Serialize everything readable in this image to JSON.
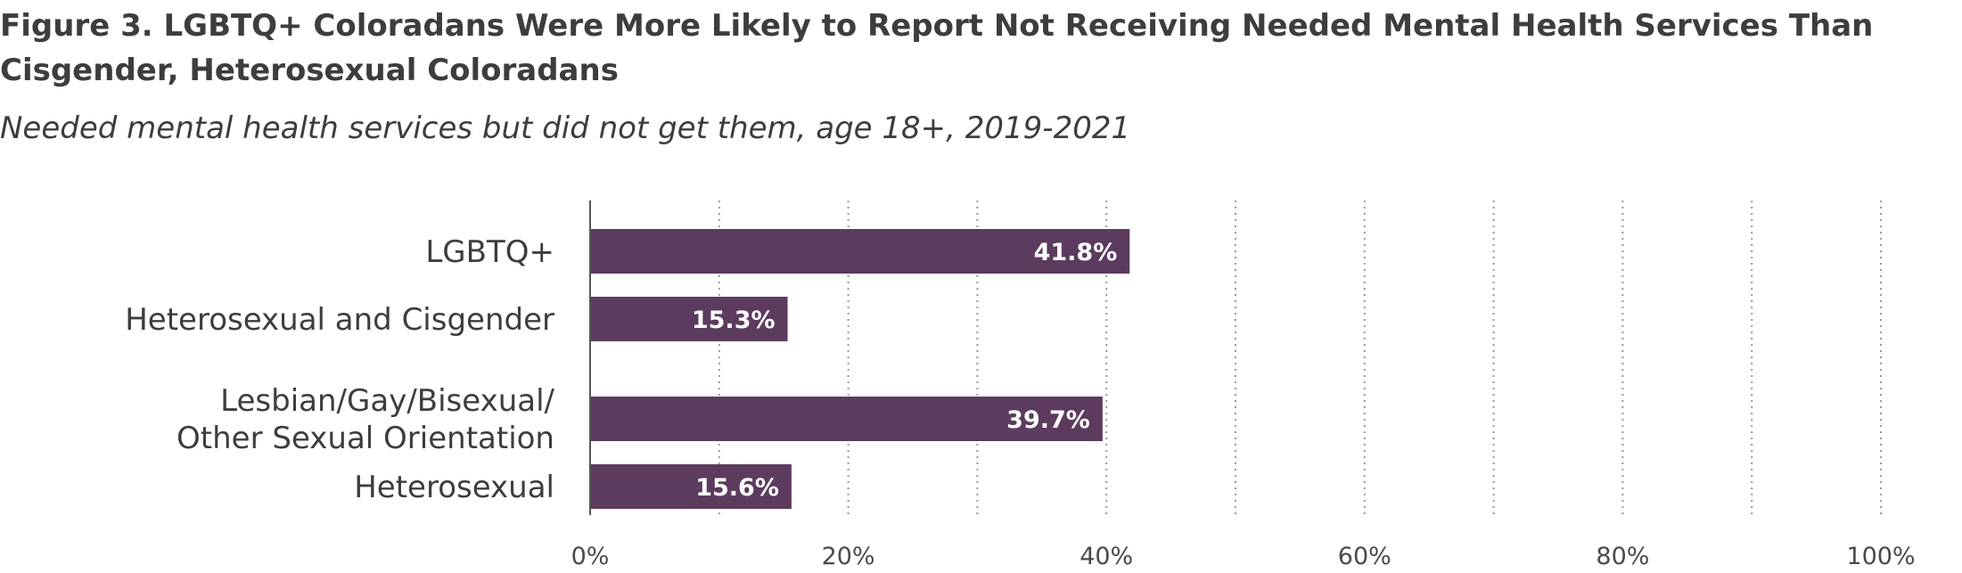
{
  "header": {
    "title": "Figure 3. LGBTQ+ Coloradans Were More Likely to Report Not Receiving Needed Mental Health Services Than Cisgender, Heterosexual Coloradans",
    "subtitle": "Needed mental health services but did not get them, age 18+, 2019-2021"
  },
  "chart_data": {
    "type": "bar",
    "orientation": "horizontal",
    "title": "Figure 3. LGBTQ+ Coloradans Were More Likely to Report Not Receiving Needed Mental Health Services Than Cisgender, Heterosexual Coloradans",
    "subtitle": "Needed mental health services but did not get them, age 18+, 2019-2021",
    "categories": [
      [
        "LGBTQ+"
      ],
      [
        "Heterosexual and Cisgender"
      ],
      [
        "Lesbian/Gay/Bisexual/",
        "Other Sexual Orientation"
      ],
      [
        "Heterosexual"
      ]
    ],
    "values": [
      41.8,
      15.3,
      39.7,
      15.6
    ],
    "data_labels": [
      "41.8%",
      "15.3%",
      "39.7%",
      "15.6%"
    ],
    "xlim": [
      0,
      100
    ],
    "xticks": [
      0,
      20,
      40,
      60,
      80,
      100
    ],
    "xtick_labels": [
      "0%",
      "20%",
      "40%",
      "60%",
      "80%",
      "100%"
    ],
    "grid": "vertical-dotted",
    "xlabel": "",
    "ylabel": "",
    "legend": "none",
    "colors": {
      "bar": "#5c3b5e",
      "axis": "#555555",
      "grid": "#9a9a9a",
      "text": "#3d3d3d"
    }
  }
}
